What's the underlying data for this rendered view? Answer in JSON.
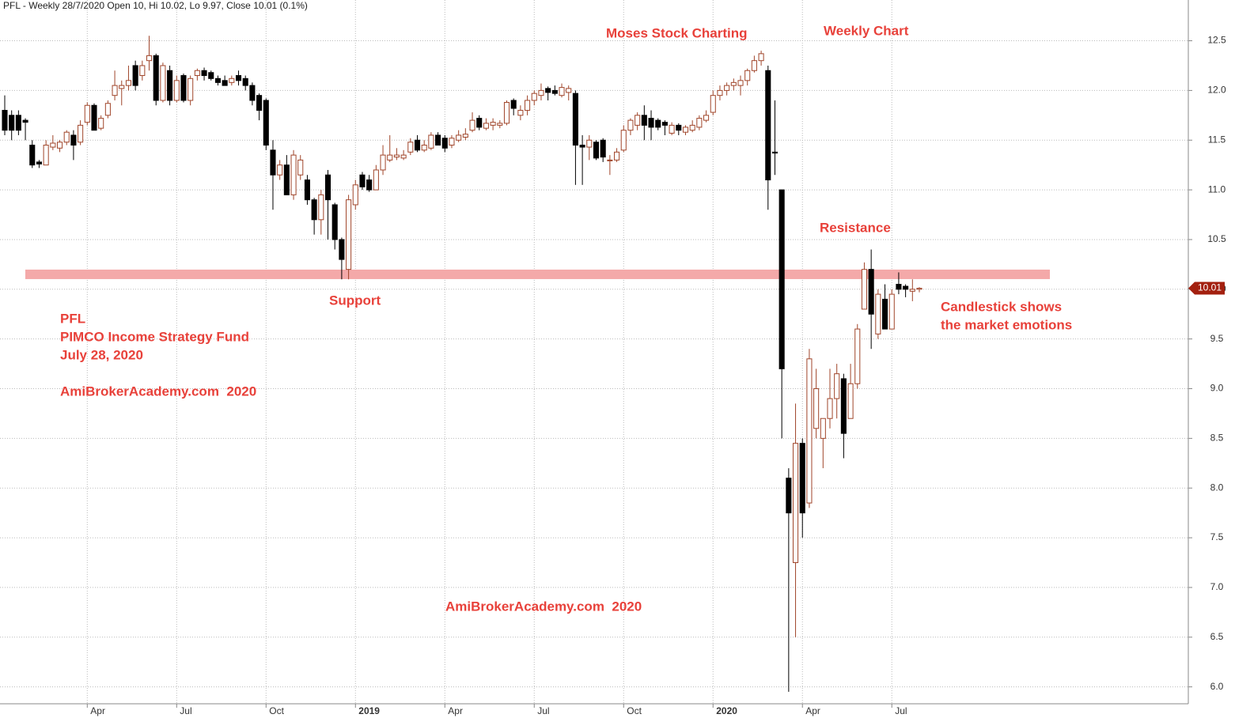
{
  "chart_data": {
    "type": "candlestick",
    "title": "PFL - Weekly 28/7/2020 Open 10, Hi 10.02, Lo 9.97, Close 10.01 (0.1%)",
    "annotations": [
      "Moses Stock Charting",
      "Weekly Chart",
      "Resistance",
      "Support",
      "PFL",
      "PIMCO Income Strategy Fund",
      "July 28, 2020",
      "AmiBrokerAcademy.com  2020",
      "AmiBrokerAcademy.com  2020",
      "Candlestick shows",
      "the market emotions"
    ],
    "level": 10.15,
    "level_color": "#f4a9a9",
    "last_label": "10.01",
    "up_color": "#ffffff",
    "up_border": "#a0452a",
    "down_color": "#000000",
    "grid": true,
    "ylim": [
      5.83,
      12.91
    ],
    "yticks": [
      {
        "value": 6,
        "label": "6.0"
      },
      6.5,
      {
        "value": 7,
        "label": "7.0"
      },
      7.5,
      {
        "value": 8,
        "label": "8.0"
      },
      8.5,
      {
        "value": 9,
        "label": "9.0"
      },
      9.5,
      {
        "value": 10,
        "label": "10.0"
      },
      10.5,
      {
        "value": 11,
        "label": "11.0"
      },
      11.5,
      {
        "value": 12,
        "label": "12.0"
      },
      12.5
    ],
    "categories": [
      null,
      null,
      null,
      null,
      null,
      null,
      null,
      null,
      null,
      null,
      null,
      null,
      "Apr",
      null,
      null,
      null,
      null,
      null,
      null,
      null,
      null,
      null,
      null,
      null,
      null,
      "Jul",
      null,
      null,
      null,
      null,
      null,
      null,
      null,
      null,
      null,
      null,
      null,
      null,
      "Oct",
      null,
      null,
      null,
      null,
      null,
      null,
      null,
      null,
      null,
      null,
      null,
      null,
      "2019",
      null,
      null,
      null,
      null,
      null,
      null,
      null,
      null,
      null,
      null,
      null,
      null,
      "Apr",
      null,
      null,
      null,
      null,
      null,
      null,
      null,
      null,
      null,
      null,
      null,
      null,
      "Jul",
      null,
      null,
      null,
      null,
      null,
      null,
      null,
      null,
      null,
      null,
      null,
      null,
      "Oct",
      null,
      null,
      null,
      null,
      null,
      null,
      null,
      null,
      null,
      null,
      null,
      null,
      "2020",
      null,
      null,
      null,
      null,
      null,
      null,
      null,
      null,
      null,
      null,
      null,
      null,
      "Apr",
      null,
      null,
      null,
      null,
      null,
      null,
      null,
      null,
      null,
      null,
      null,
      null,
      "Jul",
      null,
      null,
      null,
      null
    ],
    "open": [
      11.8,
      11.75,
      11.75,
      11.7,
      11.45,
      11.28,
      11.25,
      11.43,
      11.42,
      11.48,
      11.55,
      11.48,
      11.68,
      11.85,
      11.62,
      11.75,
      11.95,
      12.02,
      12.05,
      12.25,
      12.15,
      12.3,
      12.35,
      11.9,
      12.2,
      11.9,
      12.15,
      11.9,
      12.15,
      12.2,
      12.18,
      12.12,
      12.1,
      12.08,
      12.15,
      12.12,
      12.05,
      11.95,
      11.9,
      11.4,
      11.15,
      11.25,
      10.95,
      11.15,
      11.1,
      10.9,
      10.7,
      11.15,
      10.85,
      10.5,
      10.2,
      10.85,
      11.15,
      11.1,
      11.0,
      11.2,
      11.3,
      11.33,
      11.32,
      11.38,
      11.5,
      11.4,
      11.42,
      11.55,
      11.52,
      11.45,
      11.5,
      11.53,
      11.6,
      11.72,
      11.62,
      11.65,
      11.65,
      11.67,
      11.9,
      11.75,
      11.8,
      11.9,
      11.95,
      12.02,
      12.0,
      11.95,
      11.98,
      11.97,
      11.45,
      11.43,
      11.48,
      11.5,
      11.3,
      11.3,
      11.4,
      11.6,
      11.65,
      11.75,
      11.72,
      11.7,
      11.68,
      11.57,
      11.65,
      11.58,
      11.6,
      11.63,
      11.7,
      11.78,
      11.95,
      12.0,
      12.05,
      12.05,
      12.1,
      12.2,
      12.3,
      12.2,
      11.38,
      11.0,
      8.1,
      7.25,
      8.45,
      7.85,
      8.6,
      8.5,
      8.7,
      8.9,
      9.1,
      8.7,
      9.05,
      9.8,
      10.2,
      9.55,
      9.9,
      9.6,
      10.05,
      10.03,
      9.98,
      10.0
    ],
    "high": [
      11.95,
      11.8,
      11.8,
      11.72,
      11.5,
      11.3,
      11.5,
      11.55,
      11.5,
      11.6,
      11.6,
      11.7,
      11.88,
      11.87,
      11.75,
      11.9,
      12.2,
      12.1,
      12.25,
      12.3,
      12.3,
      12.55,
      12.37,
      12.28,
      12.25,
      12.15,
      12.17,
      12.15,
      12.22,
      12.23,
      12.2,
      12.15,
      12.15,
      12.15,
      12.2,
      12.15,
      12.08,
      11.97,
      11.92,
      11.5,
      11.3,
      11.35,
      11.4,
      11.35,
      11.15,
      10.92,
      11.0,
      11.2,
      10.87,
      10.52,
      10.95,
      11.1,
      11.18,
      11.15,
      11.25,
      11.45,
      11.55,
      11.42,
      11.4,
      11.52,
      11.55,
      11.5,
      11.58,
      11.58,
      11.55,
      11.55,
      11.6,
      11.62,
      11.78,
      11.75,
      11.72,
      11.72,
      11.7,
      11.9,
      11.92,
      11.85,
      11.95,
      12.0,
      12.07,
      12.04,
      12.05,
      12.07,
      12.05,
      12.0,
      11.55,
      11.55,
      11.5,
      11.52,
      11.35,
      11.42,
      11.65,
      11.72,
      11.78,
      11.85,
      11.8,
      11.72,
      11.7,
      11.68,
      11.67,
      11.65,
      11.7,
      11.75,
      11.8,
      12.0,
      12.05,
      12.08,
      12.12,
      12.15,
      12.22,
      12.35,
      12.4,
      12.25,
      11.9,
      11.0,
      8.2,
      8.85,
      8.5,
      9.4,
      9.2,
      8.7,
      9.2,
      9.25,
      9.15,
      9.25,
      9.65,
      10.27,
      10.4,
      10.0,
      10.05,
      10.0,
      10.17,
      10.05,
      10.1,
      10.02
    ],
    "low": [
      11.55,
      11.5,
      11.55,
      11.5,
      11.22,
      11.22,
      11.25,
      11.4,
      11.38,
      11.45,
      11.3,
      11.45,
      11.65,
      11.6,
      11.6,
      11.72,
      11.9,
      11.85,
      12.0,
      12.0,
      12.1,
      12.2,
      11.85,
      11.88,
      11.85,
      11.88,
      11.88,
      11.85,
      12.1,
      12.1,
      12.1,
      12.05,
      12.05,
      12.05,
      12.05,
      12.0,
      11.85,
      11.7,
      11.4,
      10.8,
      11.1,
      10.95,
      10.9,
      11.1,
      10.85,
      10.55,
      10.55,
      10.5,
      10.4,
      10.1,
      10.1,
      10.8,
      11.0,
      10.98,
      11.0,
      11.15,
      11.28,
      11.3,
      11.3,
      11.35,
      11.38,
      11.38,
      11.4,
      11.45,
      11.38,
      11.42,
      11.48,
      11.5,
      11.58,
      11.6,
      11.6,
      11.6,
      11.62,
      11.65,
      11.75,
      11.7,
      11.75,
      11.85,
      11.9,
      11.9,
      11.95,
      11.93,
      11.9,
      11.05,
      11.05,
      11.3,
      11.3,
      11.28,
      11.15,
      11.28,
      11.38,
      11.55,
      11.6,
      11.5,
      11.5,
      11.6,
      11.55,
      11.55,
      11.55,
      11.55,
      11.58,
      11.6,
      11.68,
      11.75,
      11.9,
      11.95,
      12.0,
      11.95,
      12.05,
      12.18,
      12.25,
      10.8,
      11.15,
      8.5,
      5.95,
      6.5,
      7.5,
      7.8,
      8.5,
      8.2,
      8.6,
      8.7,
      8.3,
      8.7,
      9.0,
      9.8,
      9.4,
      9.5,
      9.6,
      9.6,
      9.95,
      9.92,
      9.88,
      9.97
    ],
    "close": [
      11.6,
      11.6,
      11.6,
      11.68,
      11.25,
      11.26,
      11.45,
      11.47,
      11.48,
      11.58,
      11.45,
      11.65,
      11.85,
      11.6,
      11.72,
      11.87,
      12.05,
      12.05,
      12.1,
      12.05,
      12.25,
      12.35,
      11.9,
      12.25,
      11.9,
      12.1,
      11.9,
      12.12,
      12.2,
      12.15,
      12.12,
      12.08,
      12.05,
      12.12,
      12.1,
      12.05,
      11.9,
      11.8,
      11.45,
      11.15,
      11.25,
      10.95,
      11.35,
      11.3,
      10.9,
      10.7,
      10.95,
      10.9,
      10.5,
      10.3,
      10.9,
      11.05,
      11.03,
      11.0,
      11.2,
      11.35,
      11.35,
      11.35,
      11.35,
      11.48,
      11.4,
      11.45,
      11.55,
      11.45,
      11.42,
      11.52,
      11.55,
      11.56,
      11.7,
      11.63,
      11.67,
      11.68,
      11.67,
      11.88,
      11.82,
      11.8,
      11.9,
      11.97,
      12.0,
      11.98,
      11.97,
      12.03,
      12.02,
      11.45,
      11.43,
      11.5,
      11.32,
      11.33,
      11.3,
      11.38,
      11.6,
      11.7,
      11.75,
      11.65,
      11.63,
      11.63,
      11.65,
      11.65,
      11.6,
      11.63,
      11.65,
      11.72,
      11.75,
      11.95,
      12.0,
      12.05,
      12.08,
      12.1,
      12.2,
      12.3,
      12.37,
      11.1,
      11.37,
      9.2,
      7.75,
      8.45,
      7.75,
      9.3,
      9.0,
      8.7,
      8.9,
      9.15,
      8.55,
      9.05,
      9.6,
      10.2,
      9.75,
      9.95,
      9.6,
      9.95,
      10.0,
      10.0,
      10.0,
      10.01
    ]
  }
}
